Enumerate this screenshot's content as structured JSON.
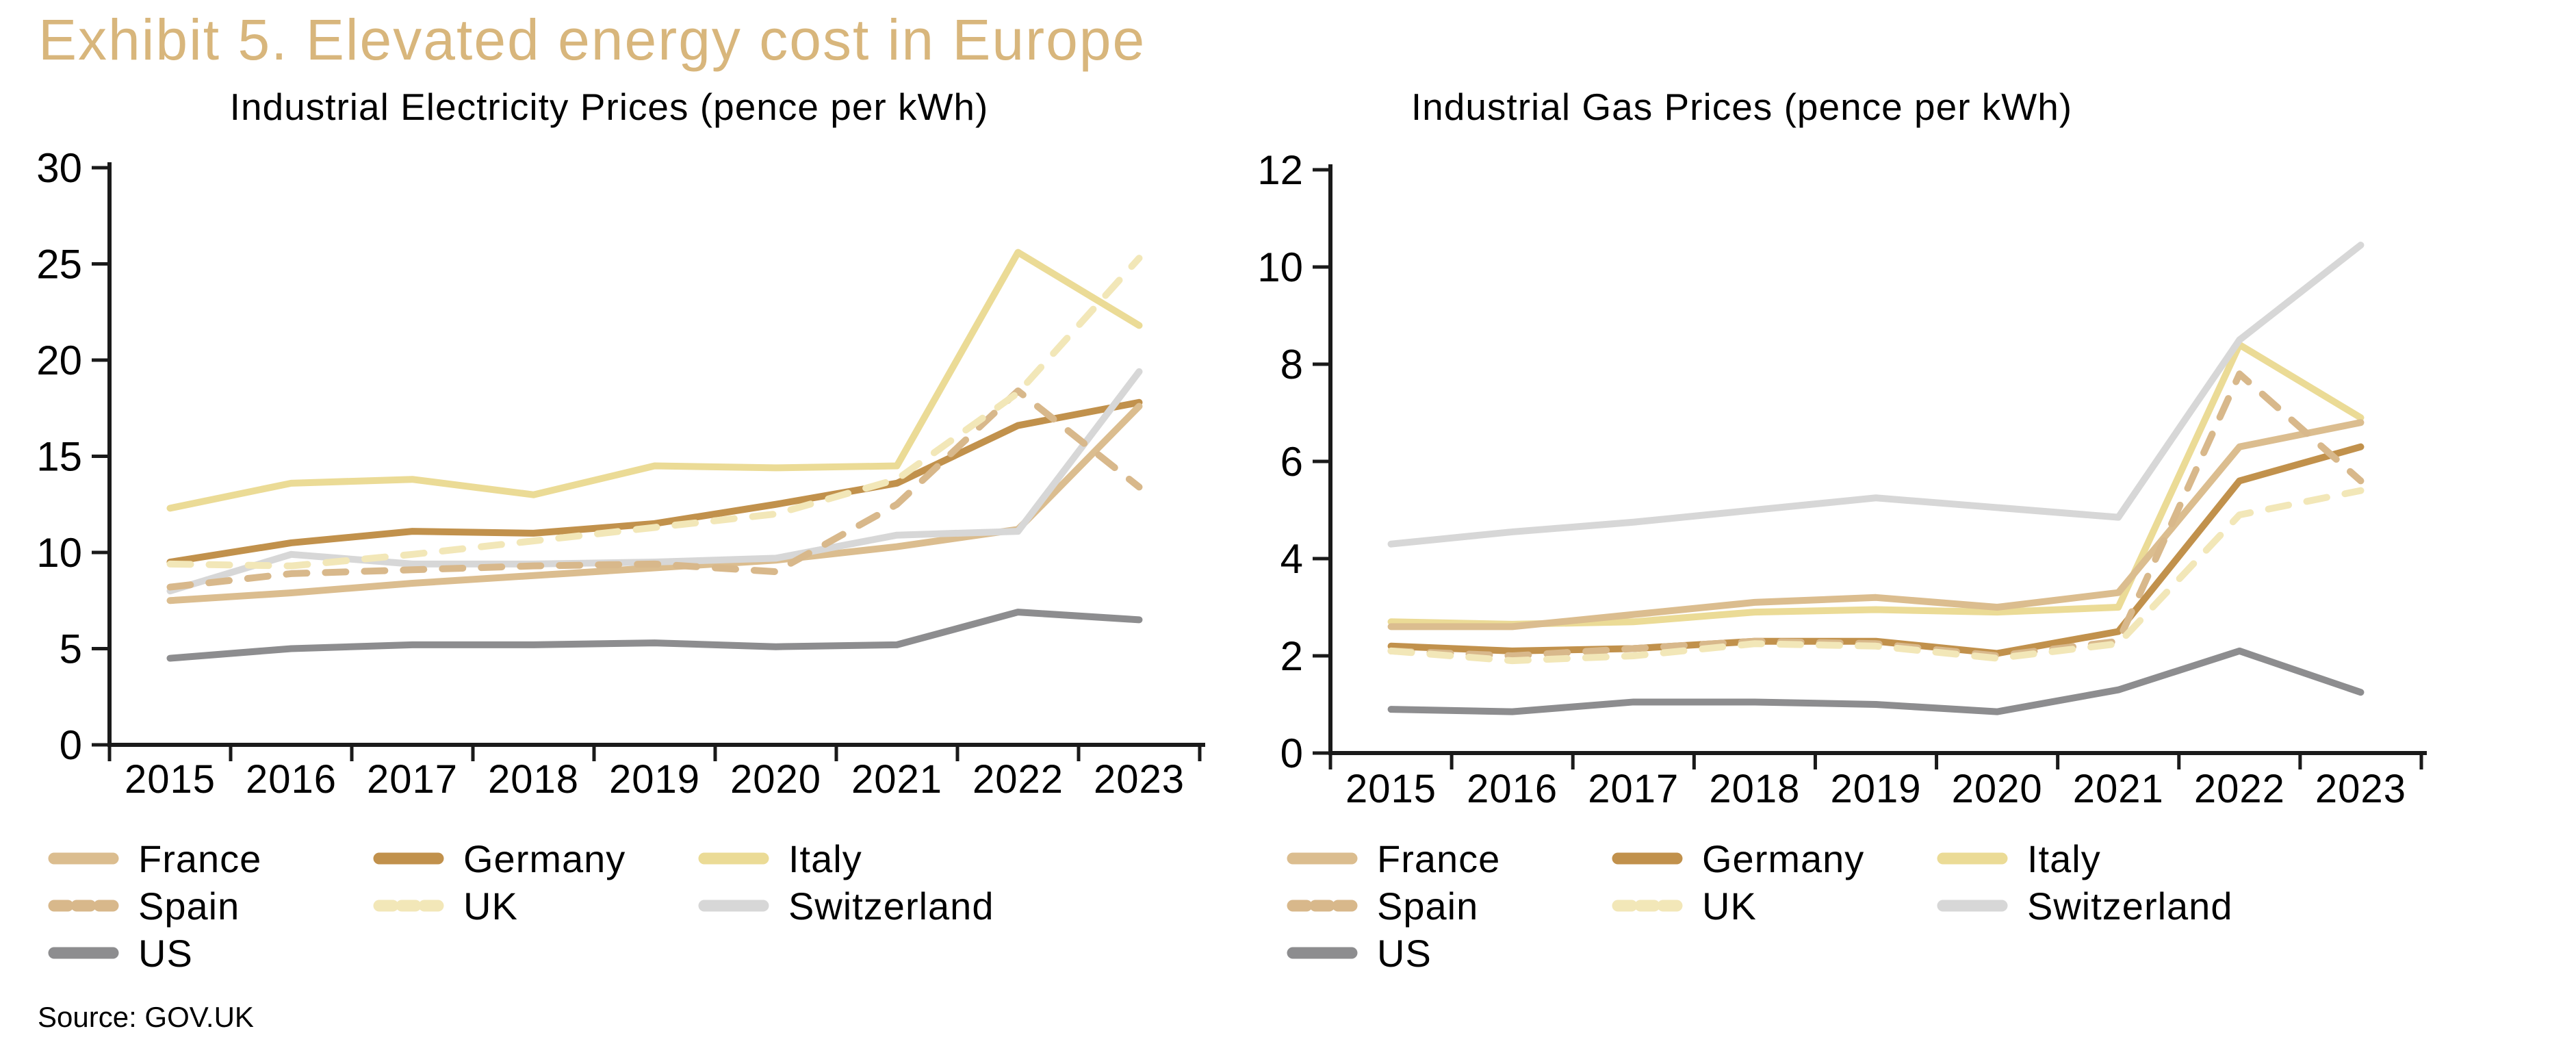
{
  "header": {
    "title": "Exhibit 5. Elevated energy cost in Europe"
  },
  "footer": {
    "source": "Source: GOV.UK"
  },
  "colors": {
    "title_accent": "#D8B67C",
    "text": "#000000",
    "axis": "#1a1a1a",
    "france": "#DBBD8F",
    "germany": "#C1914C",
    "italy": "#EBDB96",
    "spain": "#D8B88B",
    "uk": "#F2E7B8",
    "switzerland": "#D7D7D7",
    "us": "#8D8D8F"
  },
  "legend_rows": [
    [
      "France",
      "Germany",
      "Italy"
    ],
    [
      "Spain",
      "UK",
      "Switzerland"
    ],
    [
      "US"
    ]
  ],
  "chart_data": [
    {
      "id": "electricity",
      "type": "line",
      "title": "Industrial Electricity Prices (pence per kWh)",
      "xlabel": "",
      "ylabel": "",
      "grid": false,
      "legend_position": "below-left",
      "ylim": [
        0,
        30
      ],
      "ytick_step": 5,
      "categories": [
        "2015",
        "2016",
        "2017",
        "2018",
        "2019",
        "2020",
        "2021",
        "2022",
        "2023"
      ],
      "series": [
        {
          "name": "Germany",
          "color": "#C1914C",
          "dash": false,
          "values": [
            9.5,
            10.5,
            11.1,
            11.0,
            11.5,
            12.5,
            13.6,
            16.6,
            17.8
          ]
        },
        {
          "name": "Italy",
          "color": "#EBDB96",
          "dash": false,
          "values": [
            12.3,
            13.6,
            13.8,
            13.0,
            14.5,
            14.4,
            14.5,
            25.6,
            21.8
          ]
        },
        {
          "name": "France",
          "color": "#DBBD8F",
          "dash": false,
          "values": [
            7.5,
            7.9,
            8.4,
            8.8,
            9.2,
            9.6,
            10.3,
            11.2,
            17.6
          ]
        },
        {
          "name": "Switzerland",
          "color": "#D7D7D7",
          "dash": false,
          "values": [
            8.0,
            9.9,
            9.4,
            9.4,
            9.5,
            9.7,
            10.9,
            11.1,
            19.4
          ]
        },
        {
          "name": "US",
          "color": "#8D8D8F",
          "dash": false,
          "values": [
            4.5,
            5.0,
            5.2,
            5.2,
            5.3,
            5.1,
            5.2,
            6.9,
            6.5
          ]
        },
        {
          "name": "Spain",
          "color": "#D8B88B",
          "dash": true,
          "values": [
            8.2,
            8.9,
            9.1,
            9.3,
            9.4,
            9.0,
            12.5,
            18.4,
            13.4
          ]
        },
        {
          "name": "UK",
          "color": "#F2E7B8",
          "dash": true,
          "values": [
            9.4,
            9.3,
            9.9,
            10.6,
            11.3,
            12.0,
            13.8,
            18.3,
            25.3
          ]
        }
      ]
    },
    {
      "id": "gas",
      "type": "line",
      "title": "Industrial Gas Prices (pence per kWh)",
      "xlabel": "",
      "ylabel": "",
      "grid": false,
      "legend_position": "below-left",
      "ylim": [
        0,
        12
      ],
      "ytick_step": 2,
      "categories": [
        "2015",
        "2016",
        "2017",
        "2018",
        "2019",
        "2020",
        "2021",
        "2022",
        "2023"
      ],
      "series": [
        {
          "name": "Germany",
          "color": "#C1914C",
          "dash": false,
          "values": [
            2.2,
            2.1,
            2.15,
            2.3,
            2.3,
            2.05,
            2.5,
            5.6,
            6.3
          ]
        },
        {
          "name": "Italy",
          "color": "#EBDB96",
          "dash": false,
          "values": [
            2.7,
            2.65,
            2.7,
            2.9,
            2.95,
            2.9,
            3.0,
            8.4,
            6.9
          ]
        },
        {
          "name": "France",
          "color": "#DBBD8F",
          "dash": false,
          "values": [
            2.6,
            2.6,
            2.85,
            3.1,
            3.2,
            3.0,
            3.3,
            6.3,
            6.8
          ]
        },
        {
          "name": "Switzerland",
          "color": "#D7D7D7",
          "dash": false,
          "values": [
            4.3,
            4.55,
            4.75,
            5.0,
            5.25,
            5.05,
            4.85,
            8.5,
            10.45
          ]
        },
        {
          "name": "US",
          "color": "#8D8D8F",
          "dash": false,
          "values": [
            0.9,
            0.85,
            1.05,
            1.05,
            1.0,
            0.85,
            1.3,
            2.1,
            1.25
          ]
        },
        {
          "name": "Spain",
          "color": "#D8B88B",
          "dash": true,
          "values": [
            2.1,
            2.0,
            2.15,
            2.3,
            2.25,
            2.0,
            2.3,
            7.8,
            5.6
          ]
        },
        {
          "name": "UK",
          "color": "#F2E7B8",
          "dash": true,
          "values": [
            2.1,
            1.9,
            2.0,
            2.25,
            2.2,
            1.95,
            2.25,
            4.9,
            5.4
          ]
        }
      ]
    }
  ]
}
